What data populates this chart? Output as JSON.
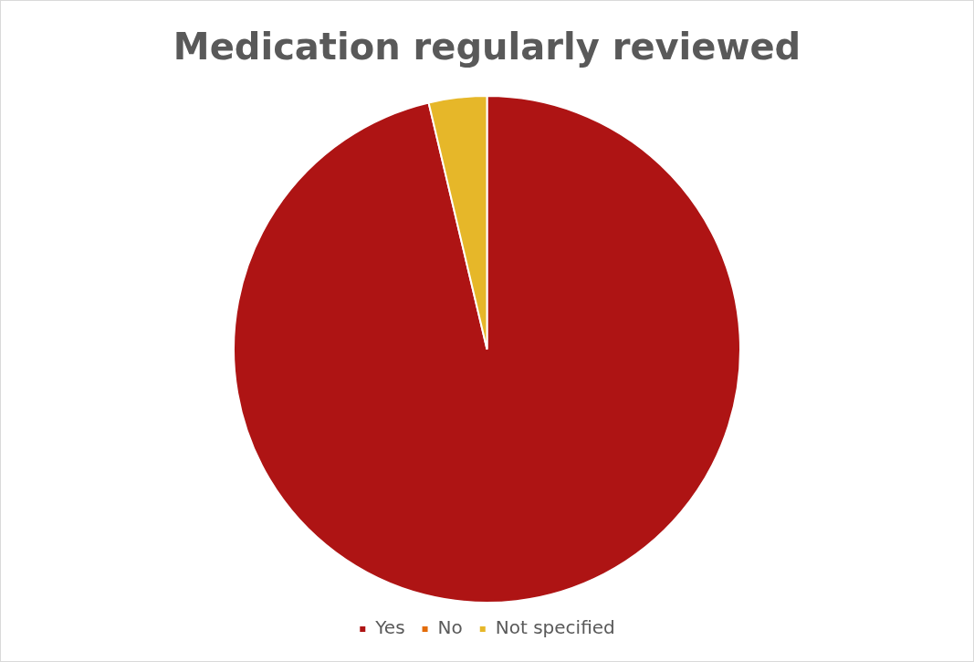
{
  "chart_data": {
    "type": "pie",
    "title": "Medication regularly reviewed",
    "categories": [
      "Yes",
      "No",
      "Not specified"
    ],
    "values": [
      96.3,
      0,
      3.7
    ],
    "colors": [
      "#ae1414",
      "#e36c0a",
      "#e6b729"
    ],
    "legend": "bottom"
  }
}
